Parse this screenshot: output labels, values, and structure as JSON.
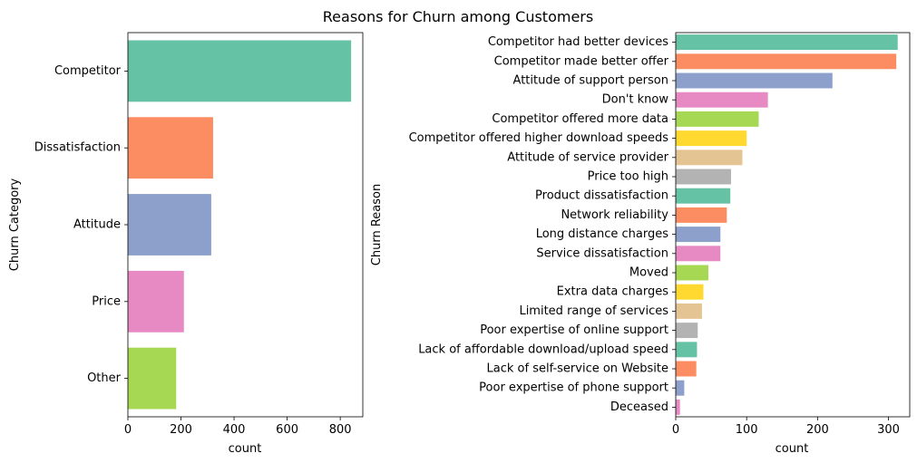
{
  "figure_title": "Reasons for Churn among Customers",
  "palette": [
    "#66c2a5",
    "#fc8d62",
    "#8da0cb",
    "#e78ac3",
    "#a6d854",
    "#ffd92f",
    "#e5c494",
    "#b3b3b3"
  ],
  "chart_data": [
    {
      "type": "bar",
      "orientation": "horizontal",
      "categories": [
        "Competitor",
        "Dissatisfaction",
        "Attitude",
        "Price",
        "Other"
      ],
      "values": [
        841,
        321,
        314,
        211,
        182
      ],
      "xlabel": "count",
      "ylabel": "Churn Category",
      "xlim": [
        0,
        885
      ],
      "xticks": [
        0,
        200,
        400,
        600,
        800
      ],
      "grid": false
    },
    {
      "type": "bar",
      "orientation": "horizontal",
      "categories": [
        "Competitor had better devices",
        "Competitor made better offer",
        "Attitude of support person",
        "Don't know",
        "Competitor offered more data",
        "Competitor offered higher download speeds",
        "Attitude of service provider",
        "Price too high",
        "Product dissatisfaction",
        "Network reliability",
        "Long distance charges",
        "Service dissatisfaction",
        "Moved",
        "Extra data charges",
        "Limited range of services",
        "Poor expertise of online support",
        "Lack of affordable download/upload speed",
        "Lack of self-service on Website",
        "Poor expertise of phone support",
        "Deceased"
      ],
      "values": [
        313,
        311,
        221,
        130,
        117,
        100,
        94,
        78,
        77,
        72,
        63,
        63,
        46,
        39,
        37,
        31,
        30,
        29,
        12,
        6
      ],
      "xlabel": "count",
      "ylabel": "Churn Reason",
      "xlim": [
        0,
        330
      ],
      "xticks": [
        0,
        100,
        200,
        300
      ],
      "grid": false
    }
  ]
}
